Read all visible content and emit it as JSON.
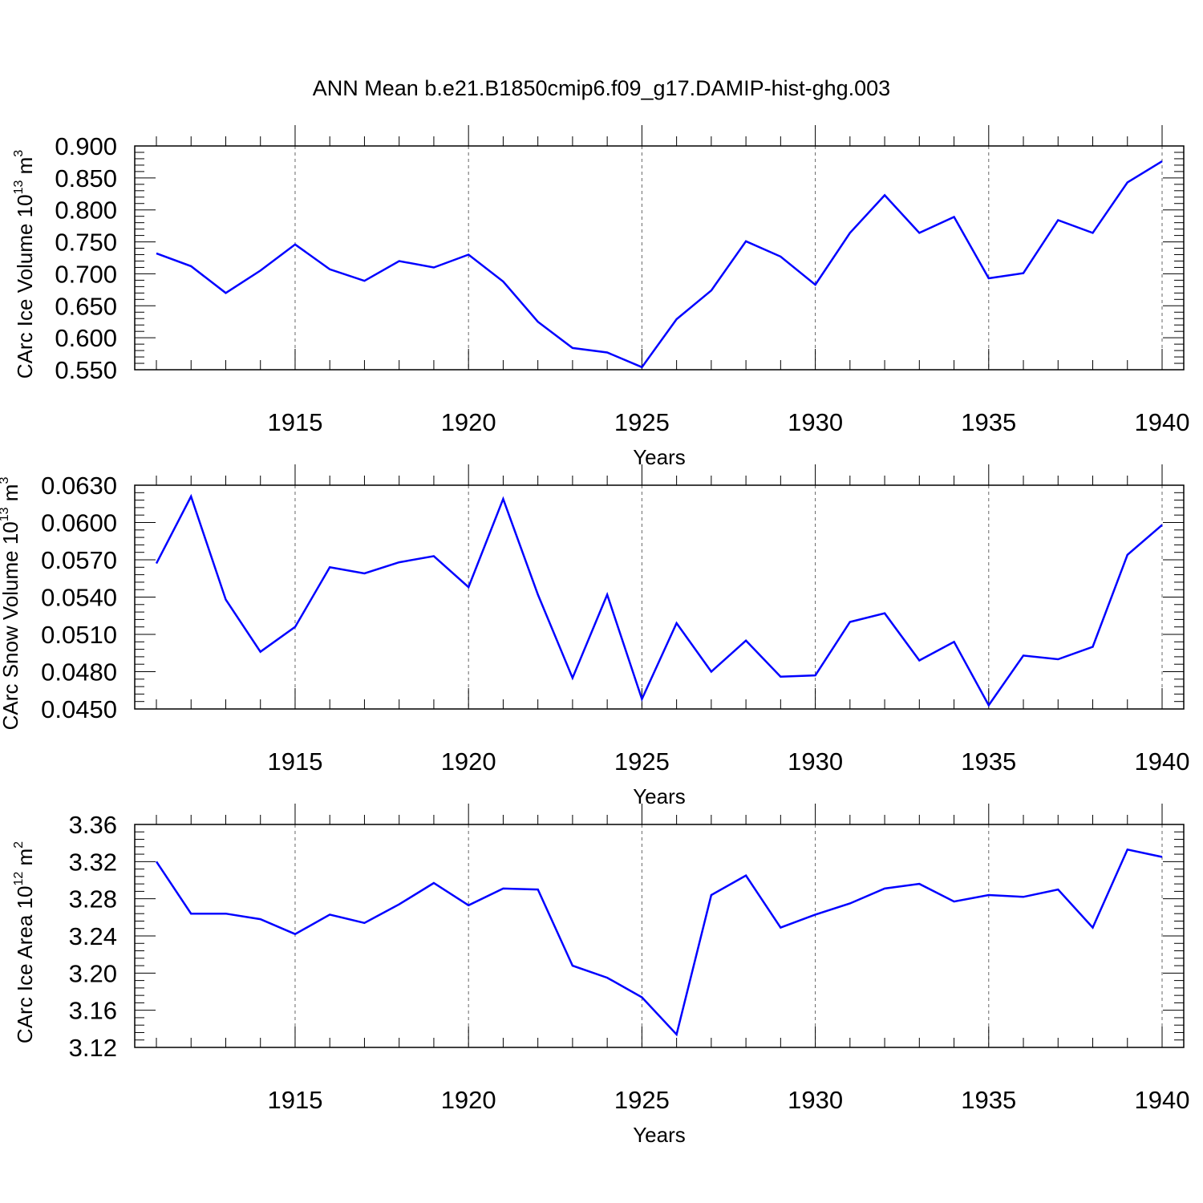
{
  "title": "ANN Mean b.e21.B1850cmip6.f09_g17.DAMIP-hist-ghg.003",
  "colors": {
    "line": "#0000ff",
    "axis": "#000000",
    "grid": "#666666"
  },
  "chart_data": [
    {
      "type": "line",
      "ylabel_main": "CArc Ice Volume 10",
      "ylabel_exp": "13",
      "ylabel_unit": " m",
      "ylabel_unit_exp": "3",
      "xlabel": "Years",
      "xlim": [
        1911,
        1940
      ],
      "ylim": [
        0.55,
        0.9
      ],
      "yticks": [
        "0.550",
        "0.600",
        "0.650",
        "0.700",
        "0.750",
        "0.800",
        "0.850",
        "0.900"
      ],
      "xticks": [
        "1915",
        "1920",
        "1925",
        "1930",
        "1935",
        "1940"
      ],
      "x": [
        1911,
        1912,
        1913,
        1914,
        1915,
        1916,
        1917,
        1918,
        1919,
        1920,
        1921,
        1922,
        1923,
        1924,
        1925,
        1926,
        1927,
        1928,
        1929,
        1930,
        1931,
        1932,
        1933,
        1934,
        1935,
        1936,
        1937,
        1938,
        1939,
        1940
      ],
      "values": [
        0.732,
        0.712,
        0.67,
        0.705,
        0.746,
        0.707,
        0.689,
        0.72,
        0.71,
        0.73,
        0.688,
        0.625,
        0.584,
        0.577,
        0.554,
        0.629,
        0.674,
        0.751,
        0.727,
        0.683,
        0.764,
        0.823,
        0.764,
        0.789,
        0.693,
        0.701,
        0.784,
        0.764,
        0.843,
        0.876
      ]
    },
    {
      "type": "line",
      "ylabel_main": "CArc Snow Volume 10",
      "ylabel_exp": "13",
      "ylabel_unit": " m",
      "ylabel_unit_exp": "3",
      "xlabel": "Years",
      "xlim": [
        1911,
        1940
      ],
      "ylim": [
        0.045,
        0.063
      ],
      "yticks": [
        "0.0450",
        "0.0480",
        "0.0510",
        "0.0540",
        "0.0570",
        "0.0600",
        "0.0630"
      ],
      "xticks": [
        "1915",
        "1920",
        "1925",
        "1930",
        "1935",
        "1940"
      ],
      "x": [
        1911,
        1912,
        1913,
        1914,
        1915,
        1916,
        1917,
        1918,
        1919,
        1920,
        1921,
        1922,
        1923,
        1924,
        1925,
        1926,
        1927,
        1928,
        1929,
        1930,
        1931,
        1932,
        1933,
        1934,
        1935,
        1936,
        1937,
        1938,
        1939,
        1940
      ],
      "values": [
        0.0567,
        0.0621,
        0.0538,
        0.0496,
        0.0516,
        0.0564,
        0.0559,
        0.0568,
        0.0573,
        0.0548,
        0.0619,
        0.0542,
        0.0475,
        0.0542,
        0.0458,
        0.0519,
        0.048,
        0.0505,
        0.0476,
        0.0477,
        0.052,
        0.0527,
        0.0489,
        0.0504,
        0.0453,
        0.0493,
        0.049,
        0.05,
        0.0574,
        0.0598
      ]
    },
    {
      "type": "line",
      "ylabel_main": "CArc Ice Area 10",
      "ylabel_exp": "12",
      "ylabel_unit": " m",
      "ylabel_unit_exp": "2",
      "xlabel": "Years",
      "xlim": [
        1911,
        1940
      ],
      "ylim": [
        3.12,
        3.36
      ],
      "yticks": [
        "3.12",
        "3.16",
        "3.20",
        "3.24",
        "3.28",
        "3.32",
        "3.36"
      ],
      "xticks": [
        "1915",
        "1920",
        "1925",
        "1930",
        "1935",
        "1940"
      ],
      "x": [
        1911,
        1912,
        1913,
        1914,
        1915,
        1916,
        1917,
        1918,
        1919,
        1920,
        1921,
        1922,
        1923,
        1924,
        1925,
        1926,
        1927,
        1928,
        1929,
        1930,
        1931,
        1932,
        1933,
        1934,
        1935,
        1936,
        1937,
        1938,
        1939,
        1940
      ],
      "values": [
        3.32,
        3.264,
        3.264,
        3.258,
        3.242,
        3.263,
        3.254,
        3.274,
        3.297,
        3.273,
        3.291,
        3.29,
        3.208,
        3.195,
        3.174,
        3.134,
        3.284,
        3.305,
        3.249,
        3.263,
        3.275,
        3.291,
        3.296,
        3.277,
        3.284,
        3.282,
        3.29,
        3.249,
        3.333,
        3.325
      ]
    }
  ]
}
